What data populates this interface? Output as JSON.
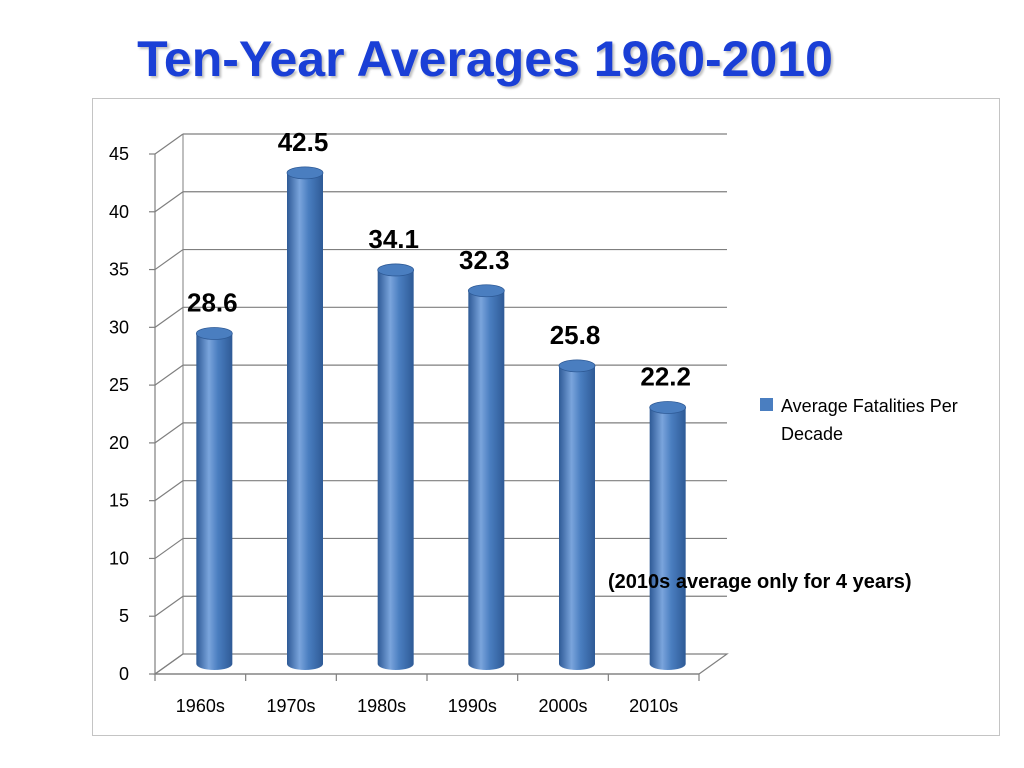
{
  "slide": {
    "title": "Ten-Year Averages 1960-2010"
  },
  "colors": {
    "title": "#1a3fd6",
    "bar": "#4a7ec0",
    "bar_dark": "#2e5a96",
    "bar_light": "#7aa4dc",
    "grid": "#7f7f7f"
  },
  "chart_data": {
    "type": "bar",
    "style": "3d-cylinder",
    "categories": [
      "1960s",
      "1970s",
      "1980s",
      "1990s",
      "2000s",
      "2010s"
    ],
    "series": [
      {
        "name": "Average Fatalities Per Decade",
        "values": [
          28.6,
          42.5,
          34.1,
          32.3,
          25.8,
          22.2
        ]
      }
    ],
    "data_labels": [
      "28.6",
      "42.5",
      "34.1",
      "32.3",
      "25.8",
      "22.2"
    ],
    "ylim": [
      0,
      45
    ],
    "yticks": [
      0,
      5,
      10,
      15,
      20,
      25,
      30,
      35,
      40,
      45
    ],
    "grid": true,
    "legend": {
      "placement": "right",
      "text_line1": "Average Fatalities Per",
      "text_line2": "Decade"
    },
    "annotation": "(2010s average only for 4 years)",
    "title": "Ten-Year Averages 1960-2010",
    "xlabel": "",
    "ylabel": ""
  }
}
